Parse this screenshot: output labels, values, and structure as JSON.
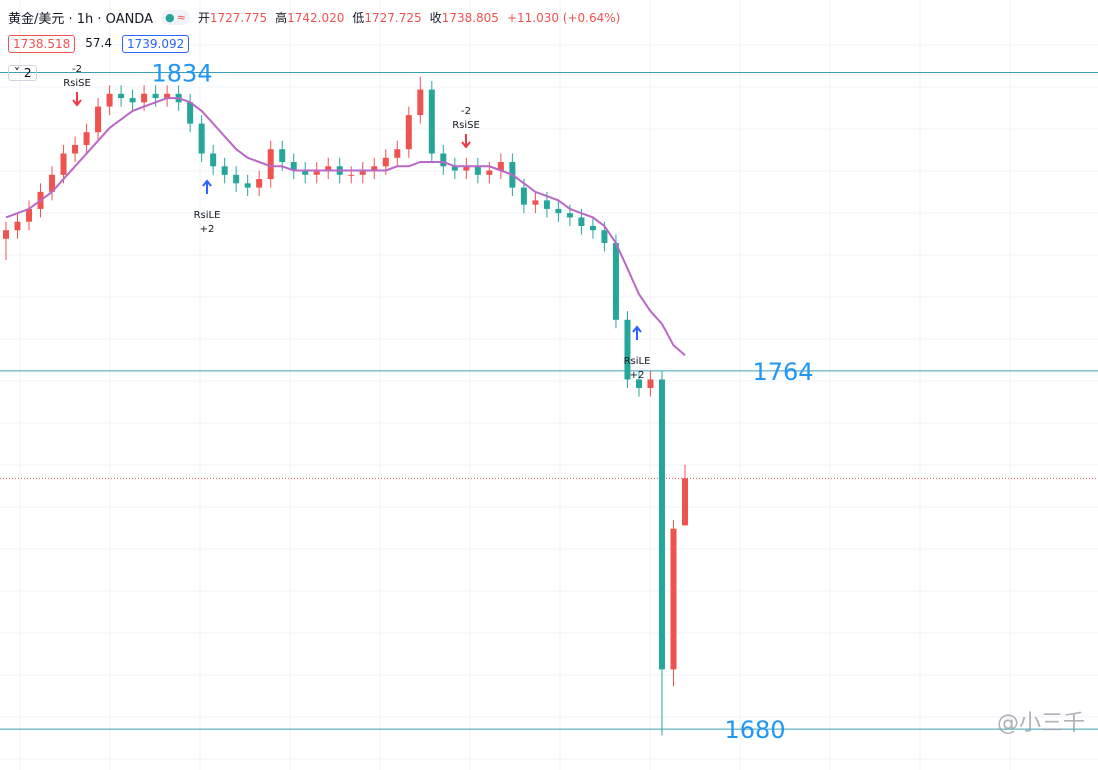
{
  "header": {
    "title": "黄金/美元 · 1h · OANDA",
    "ohlc": [
      {
        "label": "开",
        "value": "1727.775"
      },
      {
        "label": "高",
        "value": "1742.020"
      },
      {
        "label": "低",
        "value": "1727.725"
      },
      {
        "label": "收",
        "value": "1738.805"
      }
    ],
    "change": "+11.030 (+0.64%)",
    "indicators": [
      "1738.518",
      "57.4",
      "1739.092"
    ],
    "collapse": "2"
  },
  "chart_data": {
    "type": "candlestick",
    "up_color": "#ef5350",
    "down_color": "#26a69a",
    "ylim": [
      1670.4,
      1851
    ],
    "open": [
      1795,
      1797,
      1799,
      1802,
      1806,
      1810,
      1815,
      1817,
      1820,
      1826,
      1829,
      1828,
      1827,
      1829,
      1828,
      1829,
      1827,
      1822,
      1815,
      1812,
      1810,
      1808,
      1807,
      1809,
      1816,
      1813,
      1811,
      1810,
      1811,
      1812,
      1810,
      1810,
      1811,
      1812,
      1814,
      1816,
      1824,
      1830,
      1815,
      1812,
      1811,
      1812,
      1810,
      1811,
      1813,
      1807,
      1803,
      1804,
      1802,
      1801,
      1800,
      1798,
      1797,
      1794,
      1776,
      1762,
      1760,
      1762,
      1694,
      1727.775
    ],
    "high": [
      1799,
      1801,
      1804,
      1808,
      1812,
      1817,
      1819,
      1822,
      1828,
      1831,
      1831,
      1830,
      1831,
      1831,
      1831,
      1831,
      1829,
      1824,
      1817,
      1814,
      1812,
      1810,
      1811,
      1818,
      1818,
      1815,
      1813,
      1813,
      1814,
      1814,
      1812,
      1813,
      1814,
      1816,
      1818,
      1826,
      1833,
      1832,
      1817,
      1814,
      1814,
      1814,
      1813,
      1815,
      1815,
      1809,
      1806,
      1806,
      1804,
      1803,
      1802,
      1800,
      1799,
      1796,
      1778,
      1764,
      1764,
      1764,
      1729,
      1742.02
    ],
    "low": [
      1790,
      1795,
      1797,
      1800,
      1804,
      1808,
      1813,
      1815,
      1818,
      1824,
      1826,
      1825,
      1825,
      1826,
      1826,
      1825,
      1820,
      1813,
      1810,
      1808,
      1806,
      1805,
      1805,
      1807,
      1811,
      1809,
      1808,
      1808,
      1809,
      1808,
      1808,
      1808,
      1809,
      1810,
      1812,
      1814,
      1822,
      1813,
      1810,
      1809,
      1809,
      1808,
      1808,
      1809,
      1805,
      1801,
      1801,
      1800,
      1799,
      1798,
      1796,
      1795,
      1792,
      1774,
      1760,
      1758,
      1758,
      1678.5,
      1690,
      1727.725
    ],
    "close": [
      1797,
      1799,
      1802,
      1806,
      1810,
      1815,
      1817,
      1820,
      1826,
      1829,
      1828,
      1827,
      1829,
      1828,
      1829,
      1827,
      1822,
      1815,
      1812,
      1810,
      1808,
      1807,
      1809,
      1816,
      1813,
      1811,
      1810,
      1811,
      1812,
      1810,
      1810,
      1811,
      1812,
      1814,
      1816,
      1824,
      1830,
      1815,
      1812,
      1811,
      1812,
      1810,
      1811,
      1813,
      1807,
      1803,
      1804,
      1802,
      1801,
      1800,
      1798,
      1797,
      1794,
      1776,
      1762,
      1760,
      1762,
      1694,
      1727,
      1738.805
    ],
    "ma": {
      "color": "#ba68c8",
      "values": [
        1800,
        1801,
        1802,
        1804,
        1806,
        1809,
        1812,
        1815,
        1818,
        1821,
        1823,
        1825,
        1826,
        1827,
        1828,
        1828,
        1827,
        1825,
        1822,
        1819,
        1816,
        1814,
        1813,
        1812,
        1812,
        1811,
        1811,
        1811,
        1811,
        1811,
        1811,
        1811,
        1811,
        1811,
        1812,
        1812,
        1813,
        1813,
        1813,
        1812,
        1812,
        1812,
        1812,
        1811,
        1810,
        1808,
        1806,
        1805,
        1804,
        1802,
        1801,
        1800,
        1798,
        1794,
        1788,
        1782,
        1778,
        1775,
        1770,
        1767.7
      ]
    },
    "level_color": "#3d9fb5",
    "level_label_color": "#2196f3",
    "levels": [
      1834,
      1764,
      1680
    ],
    "signals": [
      {
        "label": "RsiSE",
        "qty": -2
      },
      {
        "label": "RsiLE",
        "qty": {
          "value": 2,
          "label": "+2"
        }
      },
      {
        "label": "RsiSE",
        "qty": -2
      },
      {
        "label": "RsiLE",
        "qty": {
          "value": 2,
          "label": "+2"
        }
      }
    ],
    "watermark": "@小三千"
  }
}
